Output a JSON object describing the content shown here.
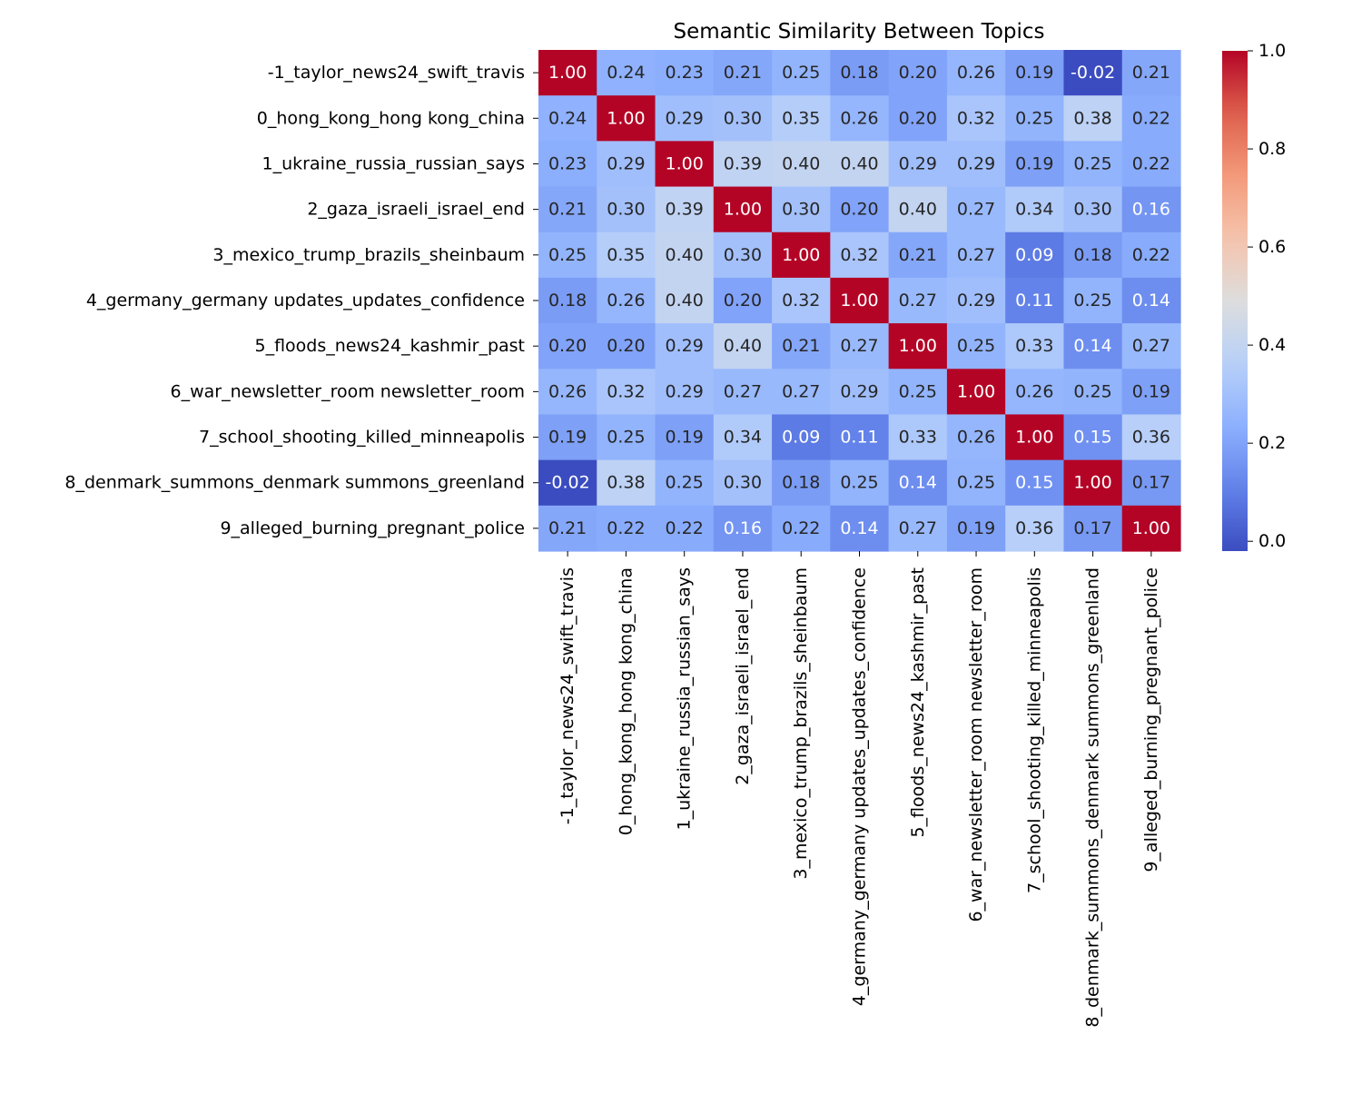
{
  "chart_data": {
    "type": "heatmap",
    "title": "Semantic Similarity Between Topics",
    "xlabel": "",
    "ylabel": "",
    "labels": [
      "-1_taylor_news24_swift_travis",
      "0_hong_kong_hong kong_china",
      "1_ukraine_russia_russian_says",
      "2_gaza_israeli_israel_end",
      "3_mexico_trump_brazils_sheinbaum",
      "4_germany_germany updates_updates_confidence",
      "5_floods_news24_kashmir_past",
      "6_war_newsletter_room newsletter_room",
      "7_school_shooting_killed_minneapolis",
      "8_denmark_summons_denmark summons_greenland",
      "9_alleged_burning_pregnant_police"
    ],
    "values": [
      [
        1.0,
        0.24,
        0.23,
        0.21,
        0.25,
        0.18,
        0.2,
        0.26,
        0.19,
        -0.02,
        0.21
      ],
      [
        0.24,
        1.0,
        0.29,
        0.3,
        0.35,
        0.26,
        0.2,
        0.32,
        0.25,
        0.38,
        0.22
      ],
      [
        0.23,
        0.29,
        1.0,
        0.39,
        0.4,
        0.4,
        0.29,
        0.29,
        0.19,
        0.25,
        0.22
      ],
      [
        0.21,
        0.3,
        0.39,
        1.0,
        0.3,
        0.2,
        0.4,
        0.27,
        0.34,
        0.3,
        0.16
      ],
      [
        0.25,
        0.35,
        0.4,
        0.3,
        1.0,
        0.32,
        0.21,
        0.27,
        0.09,
        0.18,
        0.22
      ],
      [
        0.18,
        0.26,
        0.4,
        0.2,
        0.32,
        1.0,
        0.27,
        0.29,
        0.11,
        0.25,
        0.14
      ],
      [
        0.2,
        0.2,
        0.29,
        0.4,
        0.21,
        0.27,
        1.0,
        0.25,
        0.33,
        0.14,
        0.27
      ],
      [
        0.26,
        0.32,
        0.29,
        0.27,
        0.27,
        0.29,
        0.25,
        1.0,
        0.26,
        0.25,
        0.19
      ],
      [
        0.19,
        0.25,
        0.19,
        0.34,
        0.09,
        0.11,
        0.33,
        0.26,
        1.0,
        0.15,
        0.36
      ],
      [
        -0.02,
        0.38,
        0.25,
        0.3,
        0.18,
        0.25,
        0.14,
        0.25,
        0.15,
        1.0,
        0.17
      ],
      [
        0.21,
        0.22,
        0.22,
        0.16,
        0.22,
        0.14,
        0.27,
        0.19,
        0.36,
        0.17,
        1.0
      ]
    ],
    "value_format": "2 decimals",
    "colormap": "coolwarm",
    "colorbar": {
      "range": [
        -0.02,
        1.0
      ],
      "ticks": [
        0.0,
        0.2,
        0.4,
        0.6,
        0.8,
        1.0
      ],
      "tick_labels": [
        "0.0",
        "0.2",
        "0.4",
        "0.6",
        "0.8",
        "1.0"
      ],
      "placement": "right"
    },
    "grid": false
  }
}
